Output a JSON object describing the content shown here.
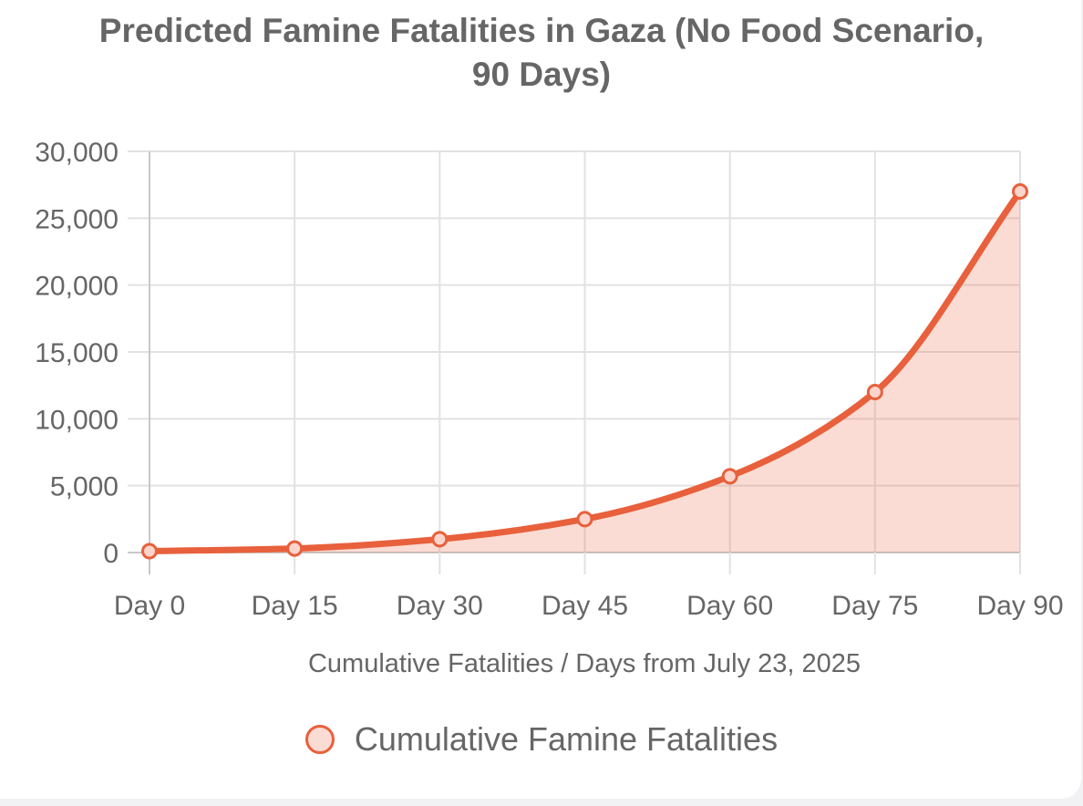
{
  "chart_data": {
    "type": "line",
    "title_lines": [
      "Predicted Famine Fatalities in Gaza (No Food Scenario,",
      "90 Days)"
    ],
    "xlabel": "Cumulative Fatalities / Days from July 23, 2025",
    "ylabel": "",
    "categories": [
      "Day 0",
      "Day 15",
      "Day 30",
      "Day 45",
      "Day 60",
      "Day 75",
      "Day 90"
    ],
    "y_ticks": [
      "0",
      "5,000",
      "10,000",
      "15,000",
      "20,000",
      "25,000",
      "30,000"
    ],
    "ylim": [
      0,
      30000
    ],
    "grid": true,
    "legend_position": "bottom",
    "series": [
      {
        "name": "Cumulative Famine Fatalities",
        "color": "#e8603c",
        "fill": "rgba(232, 96, 60, 0.22)",
        "values": [
          100,
          300,
          1000,
          2500,
          5700,
          12000,
          27000
        ]
      }
    ]
  }
}
